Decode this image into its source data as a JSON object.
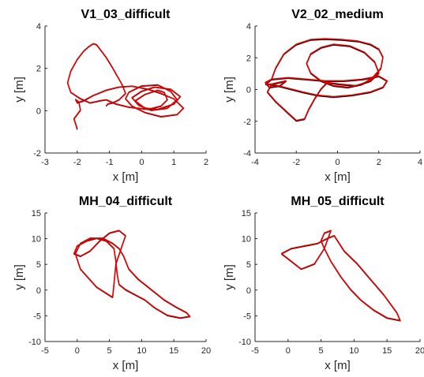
{
  "colors": {
    "ground_truth": "#000000",
    "estimate": "#e00000",
    "axis": "#262626"
  },
  "chart_data": [
    {
      "type": "line",
      "title": "V1_03_difficult",
      "xlabel": "x [m]",
      "ylabel": "y [m]",
      "xlim": [
        -3,
        2
      ],
      "ylim": [
        -2,
        4
      ],
      "xticks": [
        -3,
        -2,
        -1,
        0,
        1,
        2
      ],
      "yticks": [
        -2,
        0,
        2,
        4
      ],
      "grid": false,
      "series": [
        {
          "role": "ground_truth",
          "x": [
            -2.0,
            -2.1,
            -1.9,
            -1.95,
            -2.05,
            -2.0,
            -1.8,
            -1.5,
            -1.1,
            -0.7,
            -0.3,
            0.2,
            0.6,
            1.0,
            1.3,
            1.1,
            0.6,
            0.1,
            -0.3,
            -0.5,
            -0.4,
            0.0,
            0.5,
            0.9,
            1.1,
            0.8,
            0.3,
            -0.1,
            -0.3,
            0.0,
            0.4,
            0.9,
            1.2,
            1.0,
            0.5,
            0.1,
            -0.2,
            0.1,
            0.5,
            0.7,
            0.8,
            0.6,
            0.2,
            -0.4,
            -0.8,
            -1.1,
            -1.3,
            -1.6,
            -1.9,
            -2.2,
            -2.3,
            -2.2,
            -2.0,
            -1.8,
            -1.65,
            -1.5,
            -1.4,
            -1.3,
            -1.1,
            -0.9,
            -0.75,
            -0.6,
            -0.5,
            -0.7,
            -0.9,
            -1.05,
            -1.1
          ],
          "y": [
            -0.9,
            -0.4,
            0.0,
            0.4,
            0.5,
            0.35,
            0.45,
            0.7,
            0.95,
            1.1,
            1.15,
            1.0,
            0.8,
            0.55,
            0.1,
            -0.2,
            -0.3,
            -0.1,
            0.2,
            0.55,
            0.85,
            1.15,
            1.2,
            0.9,
            0.5,
            0.1,
            0.0,
            0.25,
            0.6,
            0.9,
            1.1,
            1.0,
            0.65,
            0.3,
            0.05,
            0.1,
            0.45,
            0.75,
            0.95,
            0.85,
            0.5,
            0.2,
            0.05,
            0.15,
            0.3,
            0.5,
            0.45,
            0.35,
            0.55,
            0.85,
            1.3,
            1.85,
            2.4,
            2.8,
            3.0,
            3.15,
            3.1,
            2.9,
            2.5,
            2.0,
            1.6,
            1.2,
            0.8,
            0.5,
            0.35,
            0.3,
            0.2
          ]
        },
        {
          "role": "estimate",
          "x": [
            -2.0,
            -2.1,
            -1.9,
            -1.95,
            -2.05,
            -2.0,
            -1.8,
            -1.5,
            -1.1,
            -0.7,
            -0.3,
            0.2,
            0.6,
            1.0,
            1.3,
            1.1,
            0.6,
            0.1,
            -0.3,
            -0.5,
            -0.4,
            0.0,
            0.5,
            0.9,
            1.1,
            0.8,
            0.3,
            -0.1,
            -0.3,
            0.0,
            0.4,
            0.9,
            1.2,
            1.0,
            0.5,
            0.1,
            -0.2,
            0.1,
            0.5,
            0.7,
            0.8,
            0.6,
            0.2,
            -0.4,
            -0.8,
            -1.1,
            -1.3,
            -1.6,
            -1.9,
            -2.2,
            -2.3,
            -2.2,
            -2.0,
            -1.8,
            -1.65,
            -1.5,
            -1.4,
            -1.3,
            -1.1,
            -0.9,
            -0.75,
            -0.6,
            -0.5,
            -0.7,
            -0.9,
            -1.05,
            -1.1
          ],
          "y": [
            -0.85,
            -0.38,
            0.03,
            0.42,
            0.53,
            0.38,
            0.48,
            0.72,
            0.97,
            1.12,
            1.16,
            1.02,
            0.82,
            0.56,
            0.12,
            -0.18,
            -0.28,
            -0.08,
            0.22,
            0.57,
            0.87,
            1.17,
            1.22,
            0.92,
            0.52,
            0.12,
            0.02,
            0.27,
            0.62,
            0.92,
            1.12,
            1.02,
            0.67,
            0.32,
            0.07,
            0.12,
            0.47,
            0.77,
            0.97,
            0.87,
            0.52,
            0.22,
            0.07,
            0.17,
            0.32,
            0.52,
            0.47,
            0.37,
            0.57,
            0.87,
            1.32,
            1.87,
            2.42,
            2.82,
            3.02,
            3.17,
            3.12,
            2.92,
            2.52,
            2.02,
            1.62,
            1.22,
            0.82,
            0.52,
            0.37,
            0.32,
            0.22
          ]
        }
      ]
    },
    {
      "type": "line",
      "title": "V2_02_medium",
      "xlabel": "x [m]",
      "ylabel": "y [m]",
      "xlim": [
        -4,
        4
      ],
      "ylim": [
        -4,
        4
      ],
      "xticks": [
        -4,
        -2,
        0,
        2,
        4
      ],
      "yticks": [
        -4,
        -2,
        0,
        2,
        4
      ],
      "grid": false,
      "series": [
        {
          "role": "ground_truth",
          "x": [
            -3.5,
            -3.2,
            -3.0,
            -2.6,
            -2.0,
            -1.3,
            -0.6,
            0.2,
            1.0,
            1.6,
            2.0,
            2.2,
            2.1,
            1.7,
            1.2,
            0.5,
            -0.2,
            -0.8,
            -1.3,
            -1.5,
            -1.3,
            -0.8,
            -0.2,
            0.6,
            1.3,
            1.8,
            2.0,
            1.6,
            0.9,
            0.1,
            -0.5,
            -0.8,
            -1.1,
            -1.4,
            -1.6,
            -2.0,
            -2.5,
            -3.0,
            -3.4,
            -3.2,
            -2.5,
            -2.8,
            -3.3,
            -3.5,
            -3.2,
            -2.4,
            -1.5,
            -0.6,
            0.3,
            1.2,
            2.0,
            2.4,
            2.2,
            1.6,
            0.7,
            -0.2,
            -1.0,
            -1.7,
            -2.3,
            -2.9,
            -3.3,
            -3.5
          ],
          "y": [
            0.3,
            0.6,
            1.3,
            2.2,
            2.8,
            3.1,
            3.15,
            3.1,
            3.0,
            2.8,
            2.5,
            2.0,
            1.3,
            0.7,
            0.3,
            0.1,
            0.2,
            0.5,
            1.0,
            1.6,
            2.2,
            2.6,
            2.8,
            2.7,
            2.3,
            1.7,
            1.0,
            0.5,
            0.2,
            0.3,
            0.4,
            0.0,
            -0.6,
            -1.3,
            -1.9,
            -2.0,
            -1.4,
            -0.8,
            -0.2,
            0.3,
            0.5,
            0.2,
            0.1,
            0.4,
            0.6,
            0.7,
            0.6,
            0.5,
            0.5,
            0.6,
            0.8,
            0.5,
            0.1,
            -0.2,
            -0.4,
            -0.5,
            -0.4,
            -0.2,
            0.0,
            0.2,
            0.3,
            0.3
          ]
        },
        {
          "role": "estimate",
          "x": [
            -3.5,
            -3.2,
            -3.0,
            -2.6,
            -2.0,
            -1.3,
            -0.6,
            0.2,
            1.0,
            1.6,
            2.0,
            2.2,
            2.1,
            1.7,
            1.2,
            0.5,
            -0.2,
            -0.8,
            -1.3,
            -1.5,
            -1.3,
            -0.8,
            -0.2,
            0.6,
            1.3,
            1.8,
            2.0,
            1.6,
            0.9,
            0.1,
            -0.5,
            -0.8,
            -1.1,
            -1.4,
            -1.6,
            -2.0,
            -2.5,
            -3.0,
            -3.4,
            -3.2,
            -2.5,
            -2.8,
            -3.3,
            -3.5,
            -3.2,
            -2.4,
            -1.5,
            -0.6,
            0.3,
            1.2,
            2.0,
            2.4,
            2.2,
            1.6,
            0.7,
            -0.2,
            -1.0,
            -1.7,
            -2.3,
            -2.9,
            -3.3,
            -3.5
          ],
          "y": [
            0.35,
            0.65,
            1.35,
            2.25,
            2.85,
            3.15,
            3.2,
            3.15,
            3.05,
            2.85,
            2.55,
            2.05,
            1.35,
            0.75,
            0.35,
            0.15,
            0.25,
            0.55,
            1.05,
            1.65,
            2.25,
            2.65,
            2.85,
            2.75,
            2.35,
            1.75,
            1.05,
            0.55,
            0.25,
            0.35,
            0.45,
            0.05,
            -0.55,
            -1.25,
            -1.85,
            -1.95,
            -1.35,
            -0.75,
            -0.15,
            0.35,
            0.55,
            0.25,
            0.15,
            0.45,
            0.65,
            0.75,
            0.65,
            0.55,
            0.55,
            0.65,
            0.85,
            0.55,
            0.15,
            -0.15,
            -0.35,
            -0.45,
            -0.35,
            -0.15,
            0.05,
            0.25,
            0.35,
            0.35
          ]
        }
      ]
    },
    {
      "type": "line",
      "title": "MH_04_difficult",
      "xlabel": "x [m]",
      "ylabel": "y [m]",
      "xlim": [
        -5,
        20
      ],
      "ylim": [
        -10,
        15
      ],
      "xticks": [
        -5,
        0,
        5,
        10,
        15,
        20
      ],
      "yticks": [
        -10,
        -5,
        0,
        5,
        10,
        15
      ],
      "grid": false,
      "series": [
        {
          "role": "ground_truth",
          "x": [
            5.5,
            3.0,
            0.5,
            -0.3,
            0.5,
            2.0,
            4.0,
            5.5,
            6.5,
            7.2,
            8.0,
            9.5,
            11.5,
            13.5,
            15.5,
            17.0,
            17.5,
            16.0,
            14.0,
            12.0,
            10.5,
            9.0,
            7.5,
            6.5,
            6.2,
            6.0,
            5.7,
            4.5,
            3.0,
            1.5,
            0.0,
            -0.5,
            0.5,
            2.0,
            3.5,
            5.0,
            6.5,
            7.5,
            6.0,
            5.5
          ],
          "y": [
            -1.5,
            0.5,
            4.0,
            7.0,
            9.0,
            10.0,
            10.0,
            9.0,
            8.0,
            6.5,
            4.0,
            2.0,
            0.0,
            -2.0,
            -3.5,
            -4.5,
            -5.2,
            -5.5,
            -5.0,
            -3.5,
            -2.0,
            -1.0,
            0.0,
            1.0,
            3.0,
            5.5,
            8.0,
            9.5,
            10.0,
            9.5,
            8.5,
            7.0,
            6.5,
            7.5,
            9.5,
            11.0,
            11.5,
            10.5,
            5.0,
            -1.5
          ]
        },
        {
          "role": "estimate",
          "x": [
            5.5,
            3.0,
            0.5,
            -0.3,
            0.5,
            2.0,
            4.0,
            5.5,
            6.5,
            7.2,
            8.0,
            9.5,
            11.5,
            13.5,
            15.5,
            17.0,
            17.5,
            16.0,
            14.0,
            12.0,
            10.5,
            9.0,
            7.5,
            6.5,
            6.2,
            6.0,
            5.7,
            4.5,
            3.0,
            1.5,
            0.0,
            -0.5,
            0.5,
            2.0,
            3.5,
            5.0,
            6.5,
            7.5,
            6.0,
            5.5
          ],
          "y": [
            -1.4,
            0.6,
            4.1,
            7.1,
            9.1,
            10.1,
            10.1,
            9.1,
            8.1,
            6.6,
            4.1,
            2.1,
            0.1,
            -1.9,
            -3.4,
            -4.4,
            -5.1,
            -5.4,
            -4.9,
            -3.4,
            -1.9,
            -0.9,
            0.1,
            1.1,
            3.1,
            5.6,
            8.1,
            9.6,
            10.1,
            9.6,
            8.6,
            7.1,
            6.6,
            7.6,
            9.6,
            11.1,
            11.6,
            10.6,
            5.1,
            -1.4
          ]
        }
      ]
    },
    {
      "type": "line",
      "title": "MH_05_difficult",
      "xlabel": "x [m]",
      "ylabel": "y [m]",
      "xlim": [
        -5,
        20
      ],
      "ylim": [
        -10,
        15
      ],
      "xticks": [
        -5,
        0,
        5,
        10,
        15,
        20
      ],
      "yticks": [
        -10,
        -5,
        0,
        5,
        10,
        15
      ],
      "grid": false,
      "series": [
        {
          "role": "ground_truth",
          "x": [
            -1.0,
            0.5,
            2.5,
            4.5,
            6.0,
            7.0,
            7.5,
            8.5,
            10.5,
            12.5,
            14.5,
            16.5,
            17.0,
            15.0,
            13.0,
            11.0,
            9.5,
            8.0,
            6.5,
            5.5,
            5.0,
            5.5,
            6.5,
            5.5,
            4.0,
            2.0,
            0.0,
            -1.0
          ],
          "y": [
            7.0,
            8.0,
            8.5,
            9.0,
            10.0,
            10.5,
            9.5,
            7.5,
            5.0,
            2.0,
            -1.0,
            -4.5,
            -6.0,
            -5.5,
            -4.0,
            -2.0,
            0.0,
            2.5,
            5.5,
            8.0,
            9.5,
            11.0,
            11.5,
            8.0,
            5.0,
            4.0,
            6.0,
            7.0
          ]
        },
        {
          "role": "estimate",
          "x": [
            -1.0,
            0.5,
            2.5,
            4.5,
            6.0,
            7.0,
            7.5,
            8.5,
            10.5,
            12.5,
            14.5,
            16.5,
            17.0,
            15.0,
            13.0,
            11.0,
            9.5,
            8.0,
            6.5,
            5.5,
            5.0,
            5.5,
            6.5,
            5.5,
            4.0,
            2.0,
            0.0,
            -1.0
          ],
          "y": [
            7.1,
            8.1,
            8.6,
            9.1,
            10.1,
            10.6,
            9.6,
            7.6,
            5.1,
            2.1,
            -0.9,
            -4.4,
            -5.9,
            -5.4,
            -3.9,
            -1.9,
            0.1,
            2.6,
            5.6,
            8.1,
            9.6,
            11.1,
            11.6,
            8.1,
            5.1,
            4.1,
            6.1,
            7.1
          ]
        }
      ]
    }
  ]
}
